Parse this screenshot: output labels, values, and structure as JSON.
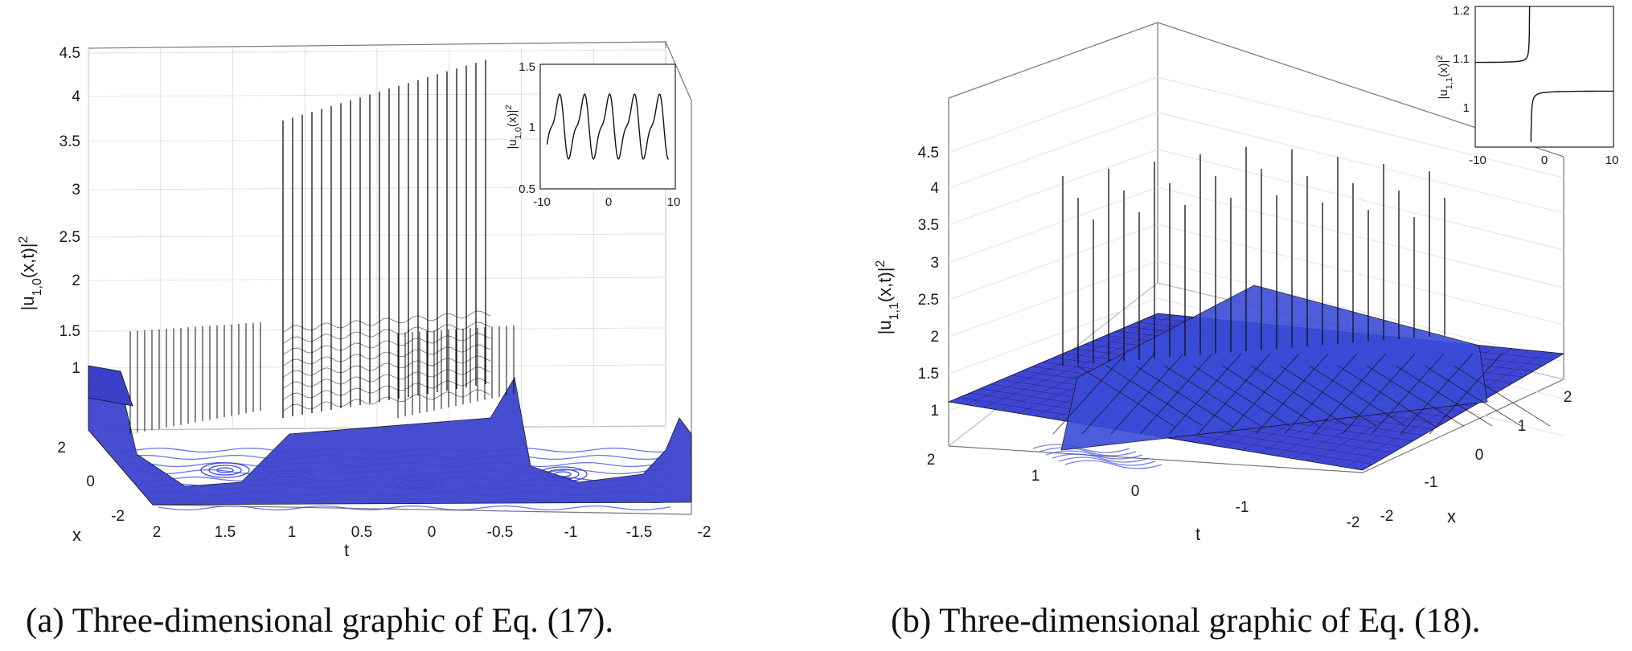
{
  "chart_data": [
    {
      "type": "surface3d",
      "caption": "(a) Three-dimensional graphic of Eq. (17).",
      "zlabel": "|u_{1,0}(x,t)|^2",
      "xlabel": "x",
      "tlabel": "t",
      "z_ticks": [
        "1",
        "1.5",
        "2",
        "2.5",
        "3",
        "3.5",
        "4",
        "4.5"
      ],
      "t_ticks": [
        "2",
        "1.5",
        "1",
        "0.5",
        "0",
        "-0.5",
        "-1",
        "-1.5",
        "-2"
      ],
      "x_ticks": [
        "2",
        "0",
        "-2"
      ],
      "zlim": [
        0.5,
        4.5
      ],
      "tlim": [
        -2,
        2
      ],
      "xlim": [
        -2,
        2
      ],
      "colormap": "parula",
      "baseline_level": 1.0,
      "peak_level": 4.4,
      "tall_band_t_range": [
        -0.5,
        1
      ],
      "contour_projection": true,
      "inset": {
        "ylabel": "|u_{1,0}(x)|^2",
        "x_ticks": [
          "-10",
          "0",
          "10"
        ],
        "y_ticks": [
          "0.5",
          "1",
          "1.5"
        ],
        "xlim": [
          -10,
          10
        ],
        "ylim": [
          0.5,
          1.5
        ]
      }
    },
    {
      "type": "surface3d",
      "caption": "(b) Three-dimensional graphic of Eq. (18).",
      "zlabel": "|u_{1,1}(x,t)|^2",
      "xlabel": "x",
      "tlabel": "t",
      "z_ticks": [
        "1",
        "1.5",
        "2",
        "2.5",
        "3",
        "3.5",
        "4",
        "4.5"
      ],
      "t_ticks": [
        "2",
        "1",
        "0",
        "-1",
        "-2"
      ],
      "x_ticks": [
        "-2",
        "-1",
        "0",
        "1",
        "2"
      ],
      "zlim": [
        0.8,
        4.6
      ],
      "tlim": [
        -2,
        2
      ],
      "xlim": [
        -2,
        2
      ],
      "colormap": "parula",
      "baseline_level": 1.1,
      "peak_level": 4.4,
      "contour_projection": true,
      "inset": {
        "ylabel": "|u_{1,1}(x)|^2",
        "x_ticks": [
          "-10",
          "0",
          "10"
        ],
        "y_ticks": [
          "1",
          "1.1",
          "1.2"
        ],
        "xlim": [
          -10,
          10
        ],
        "ylim": [
          0.95,
          1.2
        ]
      }
    }
  ],
  "colors": {
    "surface_low": "#3a3fd6",
    "surface_mid": "#1fa0c8",
    "surface_high": "#f2e64a",
    "mesh": "#111111",
    "contour": "#3a48e0",
    "grid": "#d9d9d9",
    "axis": "#555555"
  }
}
